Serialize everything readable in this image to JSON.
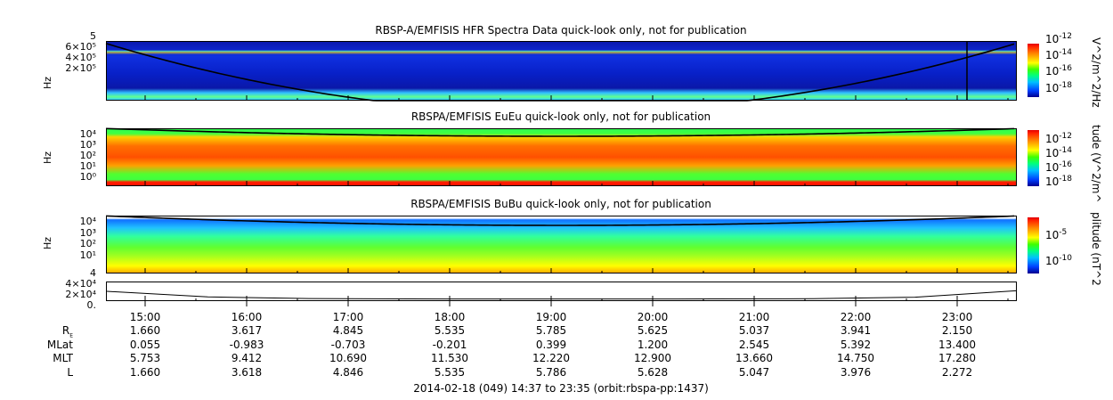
{
  "chart_data": [
    {
      "type": "heatmap",
      "title": "RBSP-A/EMFISIS  HFR Spectra Data quick-look only, not for publication",
      "ylabel": "Hz",
      "y_ticks": [
        "5",
        "6×10⁵",
        "4×10⁵",
        "2×10⁵"
      ],
      "colorbar": {
        "label": "V^2/m^2/Hz",
        "ticks": [
          "10-12",
          "10-14",
          "10-16",
          "10-18"
        ]
      }
    },
    {
      "type": "heatmap",
      "title": "RBSPA/EMFISIS  EuEu quick-look only, not for publication",
      "ylabel": "Hz",
      "y_ticks": [
        "10⁴",
        "10³",
        "10²",
        "10¹",
        "10⁰"
      ],
      "colorbar": {
        "label": "tude (V^2/m^",
        "ticks": [
          "10-12",
          "10-14",
          "10-16",
          "10-18"
        ]
      }
    },
    {
      "type": "heatmap",
      "title": "RBSPA/EMFISIS  BuBu quick-look only, not for publication",
      "ylabel": "Hz",
      "y_ticks": [
        "10⁴",
        "10³",
        "10²",
        "10¹"
      ],
      "colorbar": {
        "label": "plitude (nT^2",
        "ticks": [
          "10-5",
          "10-10"
        ]
      }
    },
    {
      "type": "line",
      "title": "",
      "y_ticks": [
        "4",
        "4×10⁴",
        "2×10⁴",
        "0."
      ],
      "x": [
        0,
        1,
        2,
        3,
        4,
        5,
        6,
        7,
        8,
        9
      ],
      "values": [
        30000,
        9000,
        3000,
        1500,
        1200,
        1200,
        1500,
        2500,
        8000,
        32000
      ]
    }
  ],
  "x_axis": {
    "ticks": [
      "15:00",
      "16:00",
      "17:00",
      "18:00",
      "19:00",
      "20:00",
      "21:00",
      "22:00",
      "23:00"
    ],
    "range": [
      "14:37",
      "23:35"
    ]
  },
  "ephemeris": [
    {
      "label": "R",
      "sub": "E",
      "values": [
        "1.660",
        "3.617",
        "4.845",
        "5.535",
        "5.785",
        "5.625",
        "5.037",
        "3.941",
        "2.150"
      ]
    },
    {
      "label": "MLat",
      "values": [
        "0.055",
        "-0.983",
        "-0.703",
        "-0.201",
        "0.399",
        "1.200",
        "2.545",
        "5.392",
        "13.400"
      ]
    },
    {
      "label": "MLT",
      "values": [
        "5.753",
        "9.412",
        "10.690",
        "11.530",
        "12.220",
        "12.900",
        "13.660",
        "14.750",
        "17.280"
      ]
    },
    {
      "label": "L",
      "values": [
        "1.660",
        "3.618",
        "4.846",
        "5.535",
        "5.786",
        "5.628",
        "5.047",
        "3.976",
        "2.272"
      ]
    }
  ],
  "footer": "2014-02-18 (049) 14:37 to 23:35 (orbit:rbspa-pp:1437)"
}
